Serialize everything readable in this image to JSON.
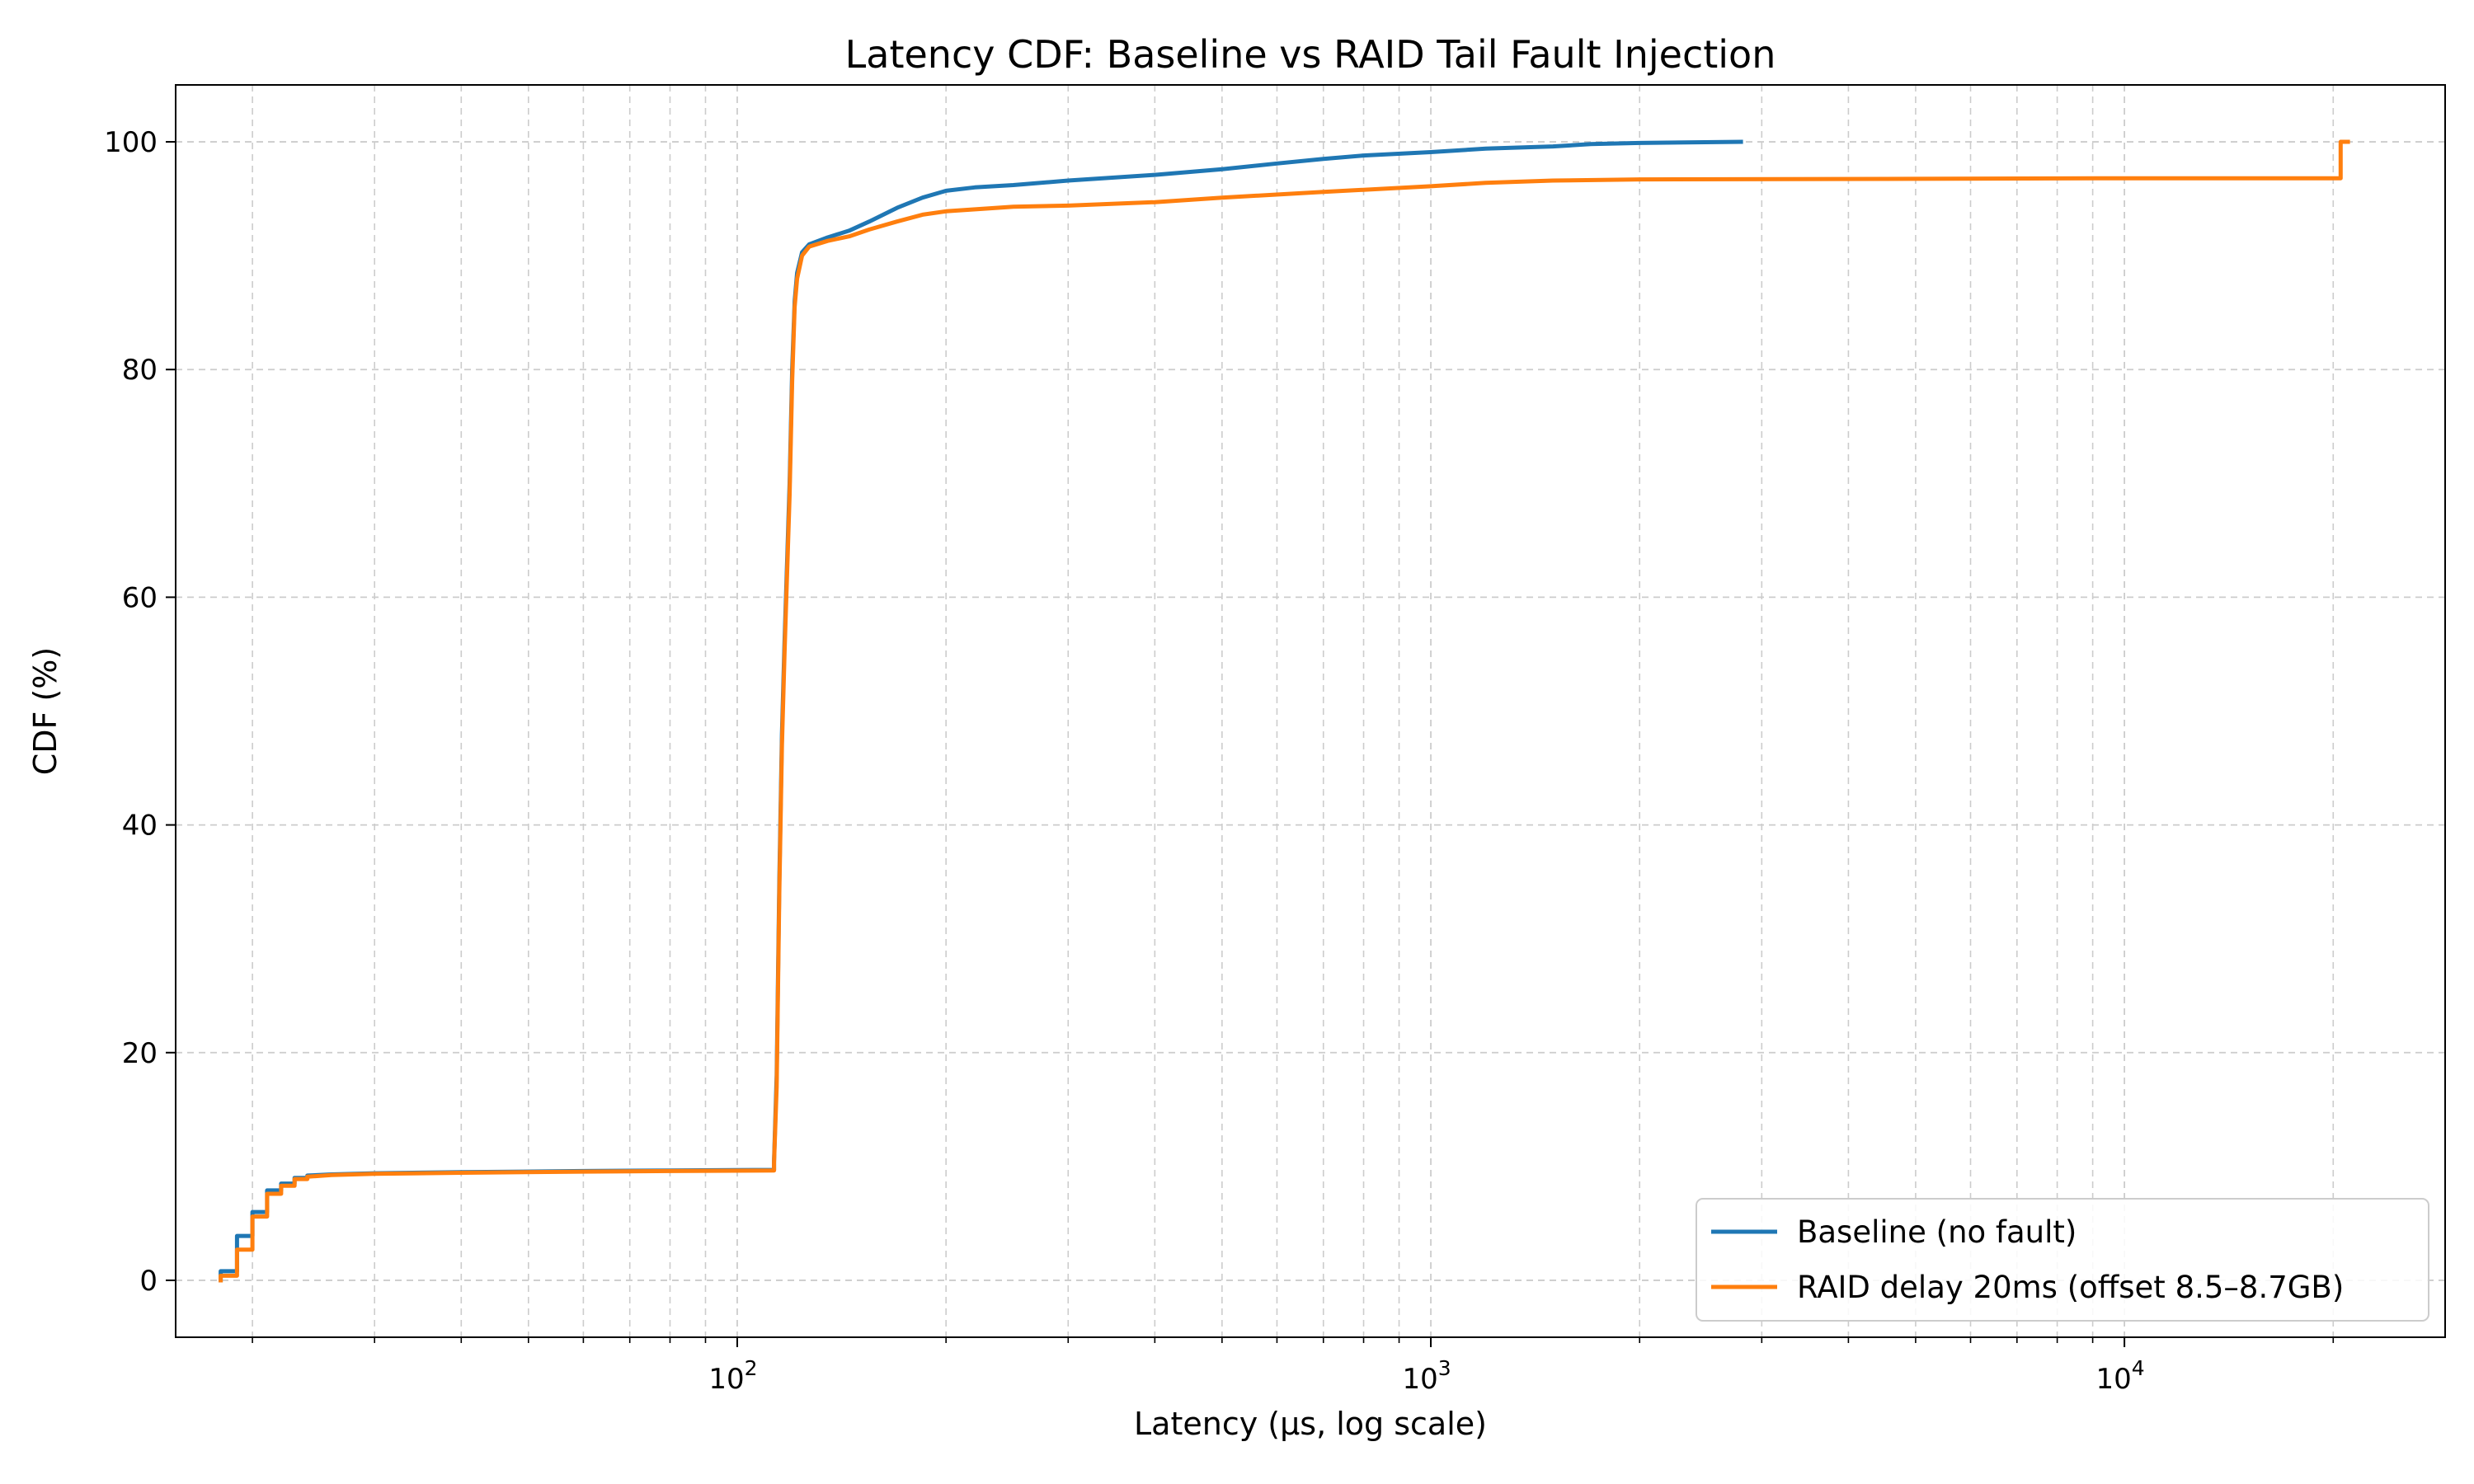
{
  "chart_data": {
    "type": "line",
    "title": "Latency CDF: Baseline vs RAID Tail Fault Injection",
    "xlabel": "Latency (µs, log scale)",
    "ylabel": "CDF (%)",
    "xscale": "log",
    "xlim": [
      15.5,
      29000
    ],
    "ylim": [
      -5,
      105
    ],
    "x_ticks": [
      {
        "value": 100,
        "base": "10",
        "exp": "2"
      },
      {
        "value": 1000,
        "base": "10",
        "exp": "3"
      },
      {
        "value": 10000,
        "base": "10",
        "exp": "4"
      }
    ],
    "y_ticks": [
      "0",
      "20",
      "40",
      "60",
      "80",
      "100"
    ],
    "grid": true,
    "legend_position": "lower-right",
    "series": [
      {
        "name": "Baseline (no fault)",
        "color": "#1f77b4",
        "step": true,
        "points": [
          [
            18,
            0
          ],
          [
            18,
            0.8
          ],
          [
            19,
            0.8
          ],
          [
            19,
            3.9
          ],
          [
            20,
            3.9
          ],
          [
            20,
            6
          ],
          [
            21,
            6
          ],
          [
            21,
            7.9
          ],
          [
            22,
            7.9
          ],
          [
            22,
            8.5
          ],
          [
            23,
            8.5
          ],
          [
            23,
            9
          ],
          [
            24,
            9
          ],
          [
            24,
            9.2
          ],
          [
            26,
            9.3
          ],
          [
            30,
            9.4
          ],
          [
            40,
            9.5
          ],
          [
            60,
            9.6
          ],
          [
            80,
            9.65
          ],
          [
            113,
            9.7
          ],
          [
            113,
            10.5
          ],
          [
            114,
            18
          ],
          [
            115,
            35
          ],
          [
            116,
            48
          ],
          [
            117,
            56
          ],
          [
            118,
            63
          ],
          [
            119,
            70
          ],
          [
            120,
            80
          ],
          [
            121,
            86
          ],
          [
            122,
            88.5
          ],
          [
            124,
            90.3
          ],
          [
            127,
            91
          ],
          [
            135,
            91.6
          ],
          [
            145,
            92.2
          ],
          [
            155,
            93
          ],
          [
            170,
            94.2
          ],
          [
            185,
            95.1
          ],
          [
            200,
            95.7
          ],
          [
            220,
            96
          ],
          [
            250,
            96.2
          ],
          [
            300,
            96.6
          ],
          [
            400,
            97.1
          ],
          [
            500,
            97.6
          ],
          [
            600,
            98.1
          ],
          [
            700,
            98.5
          ],
          [
            800,
            98.8
          ],
          [
            1000,
            99.1
          ],
          [
            1200,
            99.4
          ],
          [
            1500,
            99.6
          ],
          [
            1700,
            99.8
          ],
          [
            2000,
            99.9
          ],
          [
            2800,
            100
          ]
        ]
      },
      {
        "name": "RAID delay 20ms (offset 8.5–8.7GB)",
        "color": "#ff7f0e",
        "step": true,
        "points": [
          [
            18,
            0
          ],
          [
            18,
            0.4
          ],
          [
            19,
            0.4
          ],
          [
            19,
            2.7
          ],
          [
            20,
            2.7
          ],
          [
            20,
            5.6
          ],
          [
            21,
            5.6
          ],
          [
            21,
            7.6
          ],
          [
            22,
            7.6
          ],
          [
            22,
            8.3
          ],
          [
            23,
            8.3
          ],
          [
            23,
            8.9
          ],
          [
            24,
            8.9
          ],
          [
            24,
            9.1
          ],
          [
            26,
            9.25
          ],
          [
            30,
            9.35
          ],
          [
            40,
            9.45
          ],
          [
            60,
            9.55
          ],
          [
            80,
            9.6
          ],
          [
            113,
            9.65
          ],
          [
            113,
            10.3
          ],
          [
            114,
            17
          ],
          [
            115,
            34
          ],
          [
            116,
            47
          ],
          [
            117,
            55
          ],
          [
            118,
            62
          ],
          [
            119,
            69
          ],
          [
            120,
            79
          ],
          [
            121,
            85.5
          ],
          [
            122,
            88
          ],
          [
            124,
            90
          ],
          [
            127,
            90.8
          ],
          [
            135,
            91.3
          ],
          [
            145,
            91.7
          ],
          [
            155,
            92.3
          ],
          [
            170,
            93
          ],
          [
            185,
            93.6
          ],
          [
            200,
            93.9
          ],
          [
            250,
            94.3
          ],
          [
            300,
            94.4
          ],
          [
            400,
            94.7
          ],
          [
            500,
            95.1
          ],
          [
            700,
            95.6
          ],
          [
            1000,
            96.1
          ],
          [
            1200,
            96.4
          ],
          [
            1500,
            96.6
          ],
          [
            2000,
            96.7
          ],
          [
            5000,
            96.75
          ],
          [
            10000,
            96.8
          ],
          [
            20500,
            96.8
          ],
          [
            20500,
            100
          ],
          [
            21000,
            100
          ]
        ]
      }
    ]
  }
}
